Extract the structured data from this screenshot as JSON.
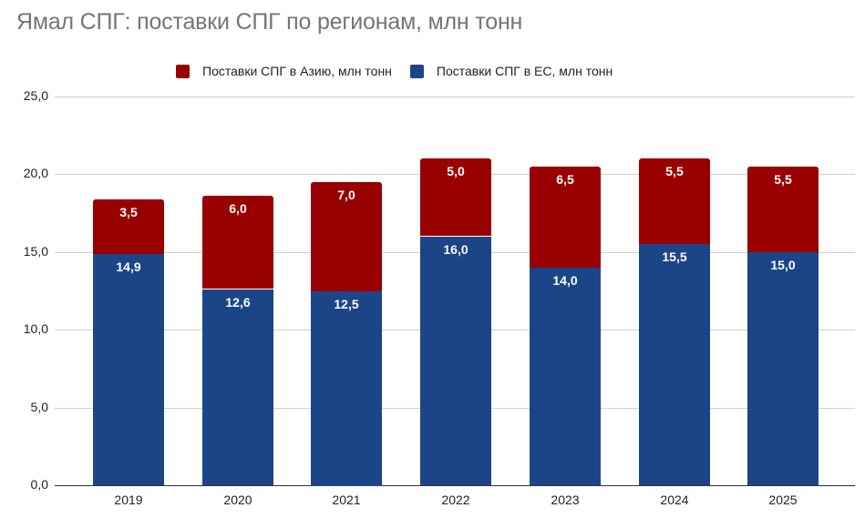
{
  "title": "Ямал СПГ: поставки СПГ по регионам, млн тонн",
  "legend": [
    {
      "label": "Поставки СПГ в Азию, млн тонн",
      "color": "#990000"
    },
    {
      "label": "Поставки СПГ в ЕС, млн тонн",
      "color": "#1c4587"
    }
  ],
  "y_ticks": [
    "25,0",
    "20,0",
    "15,0",
    "10,0",
    "5,0",
    "0,0"
  ],
  "chart_data": {
    "type": "bar",
    "stacked": true,
    "title": "Ямал СПГ: поставки СПГ по регионам, млн тонн",
    "xlabel": "",
    "ylabel": "",
    "ylim": [
      0,
      25
    ],
    "grid": true,
    "legend_position": "top",
    "categories": [
      "2019",
      "2020",
      "2021",
      "2022",
      "2023",
      "2024",
      "2025"
    ],
    "series": [
      {
        "name": "Поставки СПГ в ЕС, млн тонн",
        "color": "#1c4587",
        "values": [
          14.9,
          12.6,
          12.5,
          16.0,
          14.0,
          15.5,
          15.0
        ],
        "labels": [
          "14,9",
          "12,6",
          "12,5",
          "16,0",
          "14,0",
          "15,5",
          "15,0"
        ]
      },
      {
        "name": "Поставки СПГ в Азию, млн тонн",
        "color": "#990000",
        "values": [
          3.5,
          6.0,
          7.0,
          5.0,
          6.5,
          5.5,
          5.5
        ],
        "labels": [
          "3,5",
          "6,0",
          "7,0",
          "5,0",
          "6,5",
          "5,5",
          "5,5"
        ]
      }
    ]
  }
}
